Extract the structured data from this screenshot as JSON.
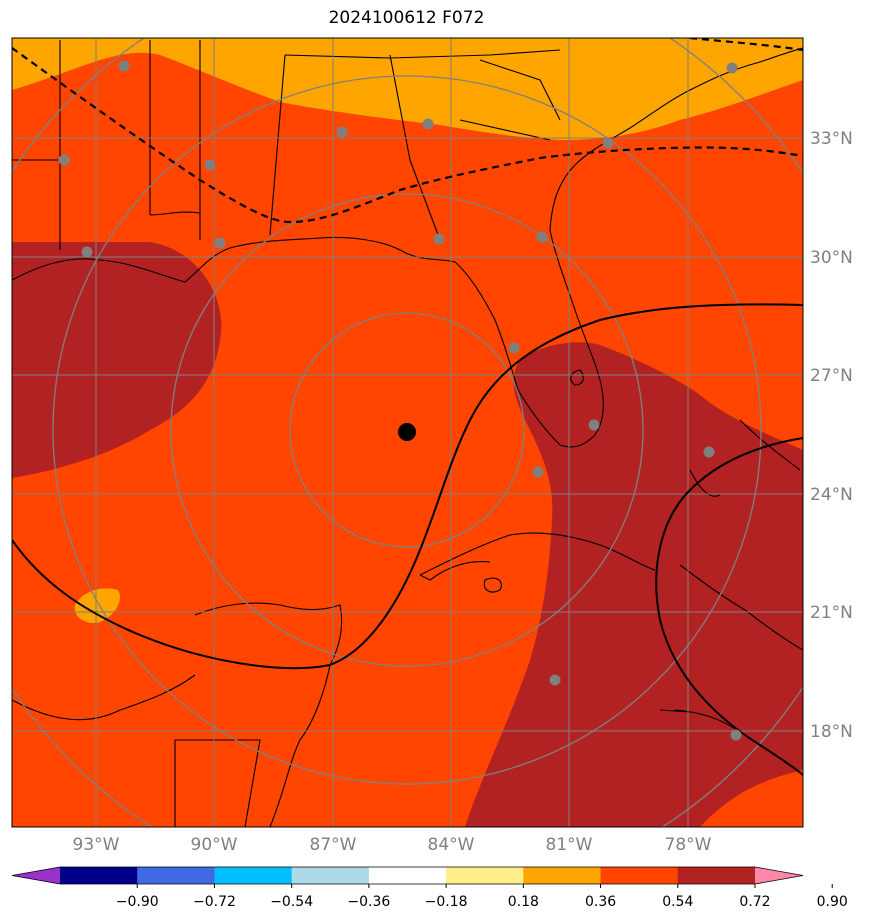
{
  "title": "2024100612 F072",
  "lat_labels": [
    "33°N",
    "30°N",
    "27°N",
    "24°N",
    "21°N",
    "18°N"
  ],
  "lon_labels": [
    "93°W",
    "90°W",
    "87°W",
    "84°W",
    "81°W",
    "78°W"
  ],
  "colorbar": {
    "ticks": [
      "−0.90",
      "−0.72",
      "−0.54",
      "−0.36",
      "−0.18",
      "0.18",
      "0.36",
      "0.54",
      "0.72",
      "0.90"
    ],
    "colors": [
      "#9932cc",
      "#00008b",
      "#4169e1",
      "#00bfff",
      "#add8e6",
      "#ffffff",
      "#ffee8a",
      "#ffa500",
      "#ff4500",
      "#b22222",
      "#ff88aa"
    ]
  },
  "colors": {
    "field_main": "#ff4500",
    "field_high": "#b22222",
    "field_mid": "#ffa500",
    "grid": "#808080",
    "coast": "#000000"
  }
}
